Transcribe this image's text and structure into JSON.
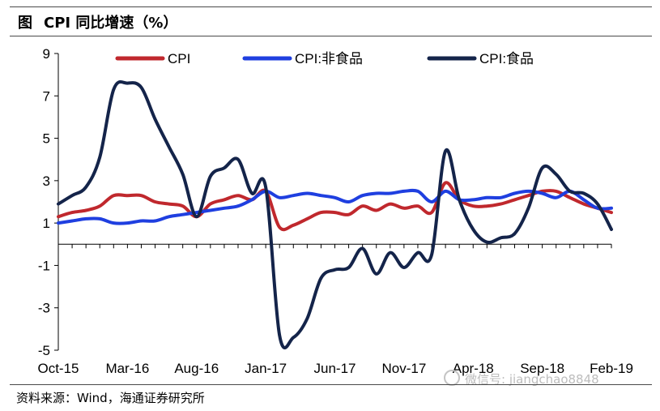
{
  "figure_label": "图",
  "title": "CPI 同比增速（%）",
  "source": "资料来源：Wind，海通证券研究所",
  "watermark": "微信号: jiangchao8848",
  "chart_data": {
    "type": "line",
    "title": "CPI 同比增速（%）",
    "xlabel": "",
    "ylabel": "",
    "ylim": [
      -5,
      9
    ],
    "y_ticks": [
      9,
      7,
      5,
      3,
      1,
      -1,
      -3,
      -5
    ],
    "x_tick_labels": [
      "Oct-15",
      "Mar-16",
      "Aug-16",
      "Jan-17",
      "Jun-17",
      "Nov-17",
      "Apr-18",
      "Sep-18",
      "Feb-19"
    ],
    "x": [
      "2015-10",
      "2015-11",
      "2015-12",
      "2016-01",
      "2016-02",
      "2016-03",
      "2016-04",
      "2016-05",
      "2016-06",
      "2016-07",
      "2016-08",
      "2016-09",
      "2016-10",
      "2016-11",
      "2016-12",
      "2017-01",
      "2017-02",
      "2017-03",
      "2017-04",
      "2017-05",
      "2017-06",
      "2017-07",
      "2017-08",
      "2017-09",
      "2017-10",
      "2017-11",
      "2017-12",
      "2018-01",
      "2018-02",
      "2018-03",
      "2018-04",
      "2018-05",
      "2018-06",
      "2018-07",
      "2018-08",
      "2018-09",
      "2018-10",
      "2018-11",
      "2018-12",
      "2019-01",
      "2019-02"
    ],
    "legend_position": "top",
    "grid": false,
    "series": [
      {
        "name": "CPI",
        "color": "#c0282d",
        "values": [
          1.3,
          1.5,
          1.6,
          1.8,
          2.3,
          2.3,
          2.3,
          2.0,
          1.9,
          1.8,
          1.3,
          1.9,
          2.1,
          2.3,
          2.1,
          2.5,
          0.8,
          0.9,
          1.2,
          1.5,
          1.5,
          1.4,
          1.8,
          1.6,
          1.9,
          1.7,
          1.8,
          1.5,
          2.9,
          2.1,
          1.8,
          1.8,
          1.9,
          2.1,
          2.3,
          2.5,
          2.5,
          2.2,
          1.9,
          1.7,
          1.5
        ]
      },
      {
        "name": "CPI:非食品",
        "color": "#1f3fe0",
        "values": [
          1.0,
          1.1,
          1.2,
          1.2,
          1.0,
          1.0,
          1.1,
          1.1,
          1.3,
          1.4,
          1.5,
          1.6,
          1.7,
          1.8,
          2.1,
          2.5,
          2.2,
          2.3,
          2.4,
          2.3,
          2.2,
          2.0,
          2.3,
          2.4,
          2.4,
          2.5,
          2.5,
          2.0,
          2.5,
          2.1,
          2.1,
          2.2,
          2.2,
          2.4,
          2.5,
          2.4,
          2.2,
          2.5,
          2.1,
          1.7,
          1.7
        ]
      },
      {
        "name": "CPI:食品",
        "color": "#14244a",
        "values": [
          1.9,
          2.3,
          2.7,
          4.1,
          7.3,
          7.6,
          7.4,
          5.9,
          4.6,
          3.3,
          1.3,
          3.2,
          3.6,
          4.0,
          2.4,
          2.7,
          -4.3,
          -4.4,
          -3.5,
          -1.6,
          -1.2,
          -1.1,
          -0.2,
          -1.4,
          -0.4,
          -1.1,
          -0.4,
          -0.5,
          4.4,
          2.1,
          0.7,
          0.1,
          0.3,
          0.5,
          1.7,
          3.6,
          3.3,
          2.5,
          2.4,
          1.9,
          0.7
        ]
      }
    ]
  }
}
